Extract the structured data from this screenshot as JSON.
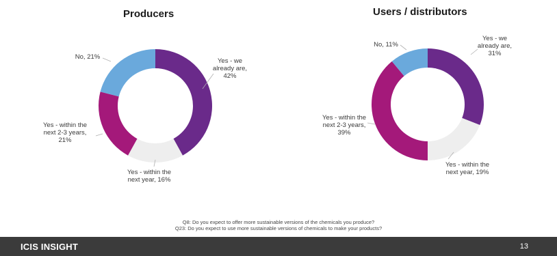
{
  "chart_data": [
    {
      "type": "donut",
      "title": "Producers",
      "slices": [
        {
          "label": "Yes - we already are",
          "value": 42,
          "color": "#6a2a8a"
        },
        {
          "label": "Yes - within the next year",
          "value": 16,
          "color": "#eeeeee"
        },
        {
          "label": "Yes - within the next 2-3 years",
          "value": 21,
          "color": "#a4197a"
        },
        {
          "label": "No",
          "value": 21,
          "color": "#6aa9dc"
        }
      ],
      "data_labels": [
        [
          "Yes - we",
          "already are,",
          "42%"
        ],
        [
          "Yes - within the",
          "next year, 16%"
        ],
        [
          "Yes - within the",
          "next 2-3 years,",
          "21%"
        ],
        [
          "No, 21%"
        ]
      ]
    },
    {
      "type": "donut",
      "title": "Users / distributors",
      "slices": [
        {
          "label": "Yes - we already are",
          "value": 31,
          "color": "#6a2a8a"
        },
        {
          "label": "Yes - within the next year",
          "value": 19,
          "color": "#eeeeee"
        },
        {
          "label": "Yes - within the next 2-3 years",
          "value": 39,
          "color": "#a4197a"
        },
        {
          "label": "No",
          "value": 11,
          "color": "#6aa9dc"
        }
      ],
      "data_labels": [
        [
          "Yes - we",
          "already are,",
          "31%"
        ],
        [
          "Yes - within the",
          "next year, 19%"
        ],
        [
          "Yes - within the",
          "next 2-3 years,",
          "39%"
        ],
        [
          "No, 11%"
        ]
      ]
    }
  ],
  "footnote": {
    "line1": "Q8: Do you expect to offer more sustainable versions of the chemicals you produce?",
    "line2": "Q23: Do you expect to use more sustainable versions of chemicals to make your products?"
  },
  "footer": {
    "brand": "ICIS INSIGHT",
    "page_number": "13"
  }
}
